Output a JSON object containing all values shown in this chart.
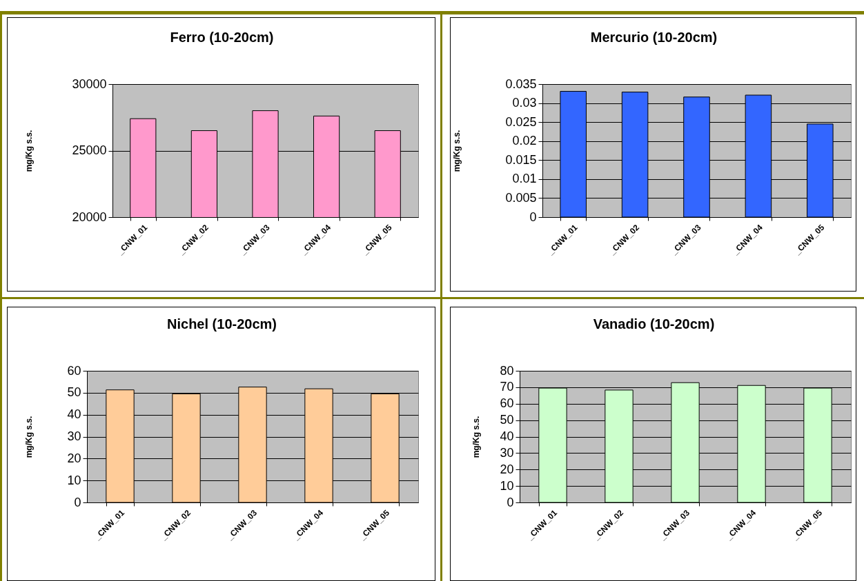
{
  "chart_data": [
    {
      "type": "bar",
      "title": "Ferro (10-20cm)",
      "ylabel": "mg/Kg s.s.",
      "categories": [
        "_CNW_01",
        "_CNW_02",
        "_CNW_03",
        "_CNW_04",
        "_CNW_05"
      ],
      "values": [
        27400,
        26500,
        28000,
        27600,
        26500
      ],
      "color": "#ff99cc",
      "ylim": [
        20000,
        30000
      ],
      "yticks": [
        20000,
        25000,
        30000
      ],
      "grid": "y"
    },
    {
      "type": "bar",
      "title": "Mercurio (10-20cm)",
      "ylabel": "mg/Kg s.s.",
      "categories": [
        "_CNW_01",
        "_CNW_02",
        "_CNW_03",
        "_CNW_04",
        "_CNW_05"
      ],
      "values": [
        0.0331,
        0.0329,
        0.0316,
        0.0321,
        0.0245
      ],
      "color": "#3366ff",
      "ylim": [
        0,
        0.035
      ],
      "yticks": [
        0,
        0.005,
        0.01,
        0.015,
        0.02,
        0.025,
        0.03,
        0.035
      ],
      "grid": "y"
    },
    {
      "type": "bar",
      "title": "Nichel (10-20cm)",
      "ylabel": "mg/Kg s.s.",
      "categories": [
        "_CNW_01",
        "_CNW_02",
        "_CNW_03",
        "_CNW_04",
        "_CNW_05"
      ],
      "values": [
        51.3,
        49.5,
        52.6,
        51.8,
        49.5
      ],
      "color": "#ffcc99",
      "ylim": [
        0,
        60
      ],
      "yticks": [
        0,
        10,
        20,
        30,
        40,
        50,
        60
      ],
      "grid": "y"
    },
    {
      "type": "bar",
      "title": "Vanadio (10-20cm)",
      "ylabel": "mg/Kg s.s.",
      "categories": [
        "_CNW_01",
        "_CNW_02",
        "_CNW_03",
        "_CNW_04",
        "_CNW_05"
      ],
      "values": [
        69.5,
        68.3,
        72.8,
        71.1,
        69.5
      ],
      "color": "#ccffcc",
      "ylim": [
        0,
        80
      ],
      "yticks": [
        0,
        10,
        20,
        30,
        40,
        50,
        60,
        70,
        80
      ],
      "grid": "y"
    }
  ]
}
